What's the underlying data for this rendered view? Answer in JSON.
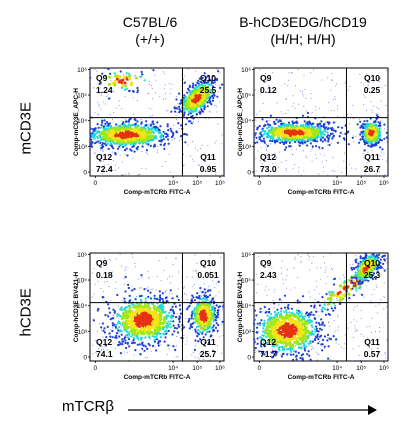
{
  "columns": [
    {
      "line1": "C57BL/6",
      "line2": "(+/+)"
    },
    {
      "line1": "B-hCD3EDG/hCD19",
      "line2": "(H/H; H/H)"
    }
  ],
  "rows": [
    {
      "label": "mCD3E"
    },
    {
      "label": "hCD3E"
    }
  ],
  "x_arrow_label": "mTCRβ",
  "colors": {
    "density_low": "#1f3fd6",
    "density_mid": "#1ed9d9",
    "density_midhigh": "#9ee81a",
    "density_high": "#f2e416",
    "density_peak": "#e63212",
    "gate": "#000000"
  },
  "chart_data": [
    {
      "type": "scatter",
      "id": "mCD3E_C57BL6",
      "xlabel": "Comp-mTCRb FITC-A",
      "ylabel": "Comp-mCD3E_APC-H",
      "xticks": [
        "0",
        "10⁴",
        "10⁵",
        "10⁶"
      ],
      "yticks": [
        "0",
        "10³",
        "10⁴",
        "10⁵",
        "10⁶"
      ],
      "quadrants": {
        "Q9": "1.24",
        "Q10": "25.5",
        "Q11": "0.95",
        "Q12": "72.4"
      },
      "populations": [
        {
          "x": 0.28,
          "y": 0.62,
          "sx": 0.16,
          "sy": 0.06,
          "n": 700,
          "r": 0
        },
        {
          "x": 0.8,
          "y": 0.28,
          "sx": 0.07,
          "sy": 0.07,
          "n": 450,
          "r": 0.5
        },
        {
          "x": 0.25,
          "y": 0.12,
          "sx": 0.1,
          "sy": 0.05,
          "n": 60,
          "r": 0
        }
      ]
    },
    {
      "type": "scatter",
      "id": "mCD3E_humanized",
      "xlabel": "Comp-mTCRb FITC-A",
      "ylabel": "Comp-mCD3E_APC-H",
      "xticks": [
        "0",
        "10⁴",
        "10⁵",
        "10⁶"
      ],
      "yticks": [
        "0",
        "10³",
        "10⁴",
        "10⁵",
        "10⁶"
      ],
      "quadrants": {
        "Q9": "0.12",
        "Q10": "0.25",
        "Q11": "26.7",
        "Q12": "73.0"
      },
      "populations": [
        {
          "x": 0.3,
          "y": 0.6,
          "sx": 0.15,
          "sy": 0.05,
          "n": 700,
          "r": 0
        },
        {
          "x": 0.88,
          "y": 0.6,
          "sx": 0.04,
          "sy": 0.06,
          "n": 350,
          "r": 0
        }
      ]
    },
    {
      "type": "scatter",
      "id": "hCD3E_C57BL6",
      "xlabel": "Comp-mTCRb FITC-A",
      "ylabel": "Comp-hCD3E BV421-H",
      "xticks": [
        "0",
        "10⁴",
        "10⁵",
        "10⁶"
      ],
      "yticks": [
        "0",
        "10³",
        "10⁴",
        "10⁵",
        "10⁶"
      ],
      "quadrants": {
        "Q9": "0.18",
        "Q10": "0.051",
        "Q11": "25.7",
        "Q12": "74.1"
      },
      "populations": [
        {
          "x": 0.4,
          "y": 0.62,
          "sx": 0.13,
          "sy": 0.12,
          "n": 700,
          "r": 0
        },
        {
          "x": 0.85,
          "y": 0.58,
          "sx": 0.05,
          "sy": 0.1,
          "n": 380,
          "r": 0
        }
      ]
    },
    {
      "type": "scatter",
      "id": "hCD3E_humanized",
      "xlabel": "Comp-mTCRb FITC-A",
      "ylabel": "Comp-hCD3E BV421-H",
      "xticks": [
        "0",
        "10⁴",
        "10⁵",
        "10⁶"
      ],
      "yticks": [
        "0",
        "10³",
        "10⁴",
        "10⁵",
        "10⁶"
      ],
      "quadrants": {
        "Q9": "2.43",
        "Q10": "25.3",
        "Q11": "0.57",
        "Q12": "71.7"
      },
      "populations": [
        {
          "x": 0.25,
          "y": 0.72,
          "sx": 0.13,
          "sy": 0.12,
          "n": 650,
          "r": 0
        },
        {
          "x": 0.7,
          "y": 0.32,
          "sx": 0.13,
          "sy": 0.06,
          "n": 120,
          "r": 0.6
        },
        {
          "x": 0.84,
          "y": 0.14,
          "sx": 0.05,
          "sy": 0.06,
          "n": 350,
          "r": 0.5
        }
      ]
    }
  ]
}
